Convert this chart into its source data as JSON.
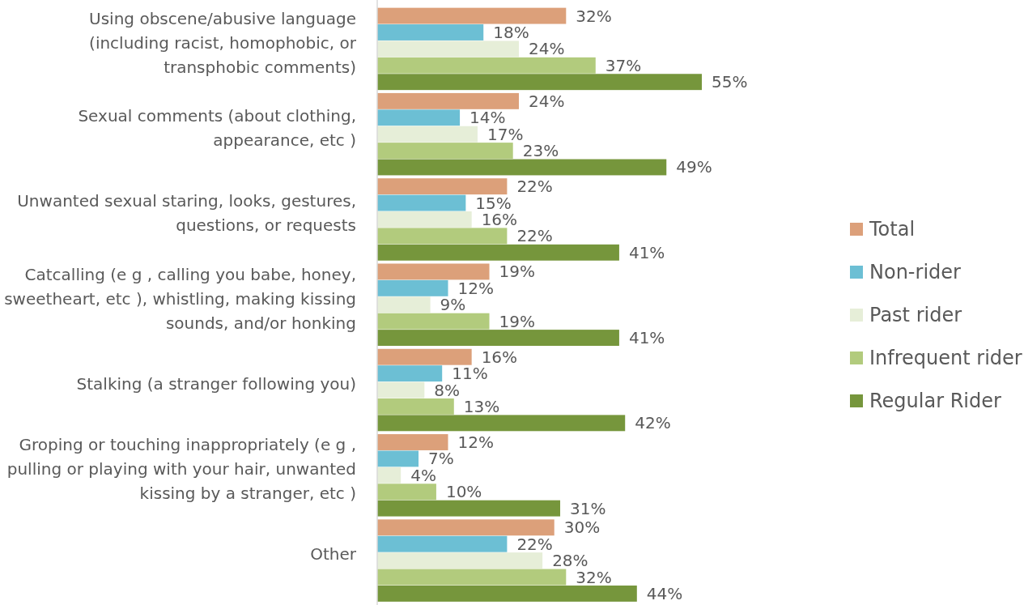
{
  "chart_data": {
    "type": "bar",
    "orientation": "horizontal",
    "legend": "right",
    "categories": [
      "Using obscene/abusive language (including racist, homophobic, or transphobic comments)",
      "Sexual comments (about clothing, appearance, etc )",
      "Unwanted sexual staring, looks, gestures, questions, or requests",
      "Catcalling (e g , calling you babe, honey, sweetheart, etc ), whistling, making kissing sounds, and/or honking",
      "Stalking (a stranger following you)",
      "Groping or touching inappropriately (e g , pulling or playing with your hair, unwanted kissing by a stranger, etc )",
      "Other"
    ],
    "series": [
      {
        "name": "Total",
        "color": "#dca07a",
        "values": [
          32,
          24,
          22,
          19,
          16,
          12,
          30
        ],
        "value_labels": [
          "32%",
          "24%",
          "22%",
          "19%",
          "16%",
          "12%",
          "30%"
        ]
      },
      {
        "name": "Non-rider",
        "color": "#6cbfd4",
        "values": [
          18,
          14,
          15,
          12,
          11,
          7,
          22
        ],
        "value_labels": [
          "18%",
          "14%",
          "15%",
          "12%",
          "11%",
          "7%",
          "22%"
        ]
      },
      {
        "name": "Past rider",
        "color": "#e6eed8",
        "values": [
          24,
          17,
          16,
          9,
          8,
          4,
          28
        ],
        "value_labels": [
          "24%",
          "17%",
          "16%",
          "9%",
          "8%",
          "4%",
          "28%"
        ]
      },
      {
        "name": "Infrequent rider",
        "color": "#b2cb7d",
        "values": [
          37,
          23,
          22,
          19,
          13,
          10,
          32
        ],
        "value_labels": [
          "37%",
          "23%",
          "22%",
          "19%",
          "13%",
          "10%",
          "32%"
        ]
      },
      {
        "name": "Regular Rider",
        "color": "#76963c",
        "values": [
          55,
          49,
          41,
          41,
          42,
          31,
          44
        ],
        "value_labels": [
          "55%",
          "49%",
          "41%",
          "41%",
          "42%",
          "31%",
          "44%"
        ]
      }
    ]
  }
}
